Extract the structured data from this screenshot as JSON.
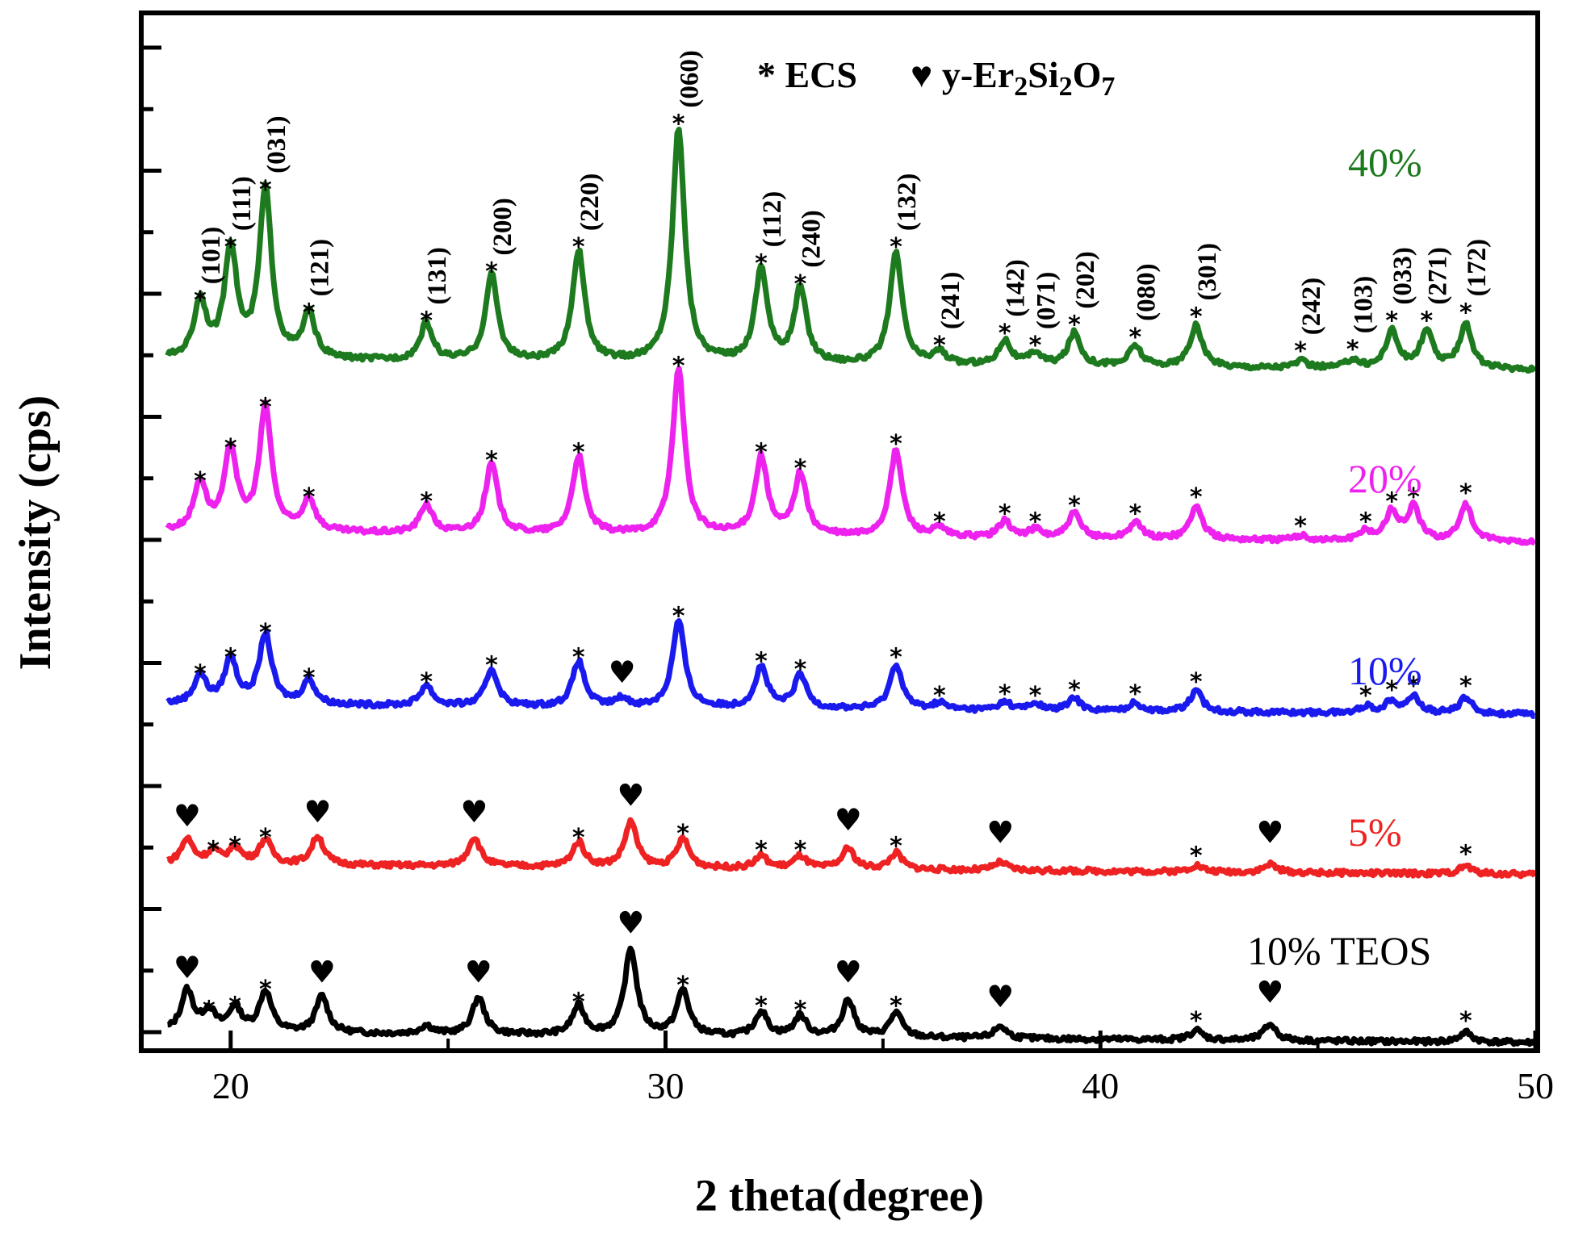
{
  "chart_data": {
    "type": "line",
    "title": "",
    "xlabel": "2 theta(degree)",
    "ylabel": "Intensity (cps)",
    "xlim": [
      18,
      50
    ],
    "xticks": [
      20,
      30,
      40,
      50
    ],
    "ylim": [
      0,
      12
    ],
    "yticks_labeled": false,
    "legend": {
      "ecs_symbol": "*",
      "ecs_label": "ECS",
      "y_symbol": "♥",
      "y_label_prefix": "y-Er",
      "y_sub1": "2",
      "y_mid1": "Si",
      "y_sub2": "2",
      "y_mid2": "O",
      "y_sub3": "7"
    },
    "series": [
      {
        "name": "10% TEOS",
        "color": "#000000",
        "baseline": 0.0,
        "peaks": [
          {
            "x": 19.0,
            "h": 0.5,
            "marker": "heart"
          },
          {
            "x": 19.5,
            "h": 0.25,
            "marker": "star"
          },
          {
            "x": 20.1,
            "h": 0.3,
            "marker": "star"
          },
          {
            "x": 20.8,
            "h": 0.5,
            "marker": "star"
          },
          {
            "x": 22.1,
            "h": 0.45,
            "marker": "heart"
          },
          {
            "x": 24.5,
            "h": 0.1
          },
          {
            "x": 25.7,
            "h": 0.45,
            "marker": "heart"
          },
          {
            "x": 28.0,
            "h": 0.35,
            "marker": "star"
          },
          {
            "x": 29.2,
            "h": 1.05,
            "marker": "heart"
          },
          {
            "x": 30.4,
            "h": 0.55,
            "marker": "star"
          },
          {
            "x": 32.2,
            "h": 0.3,
            "marker": "star"
          },
          {
            "x": 33.1,
            "h": 0.25,
            "marker": "star"
          },
          {
            "x": 34.2,
            "h": 0.45,
            "marker": "heart"
          },
          {
            "x": 35.3,
            "h": 0.3,
            "marker": "star"
          },
          {
            "x": 37.7,
            "h": 0.15,
            "marker": "heart"
          },
          {
            "x": 42.2,
            "h": 0.12,
            "marker": "star"
          },
          {
            "x": 43.9,
            "h": 0.2,
            "marker": "heart"
          },
          {
            "x": 48.4,
            "h": 0.12,
            "marker": "star"
          }
        ]
      },
      {
        "name": "5%",
        "color": "#ee2222",
        "baseline": 2.05,
        "peaks": [
          {
            "x": 19.0,
            "h": 0.3,
            "marker": "heart"
          },
          {
            "x": 19.6,
            "h": 0.15,
            "marker": "star"
          },
          {
            "x": 20.1,
            "h": 0.2,
            "marker": "star"
          },
          {
            "x": 20.8,
            "h": 0.3,
            "marker": "star"
          },
          {
            "x": 22.0,
            "h": 0.35,
            "marker": "heart"
          },
          {
            "x": 25.6,
            "h": 0.35,
            "marker": "heart"
          },
          {
            "x": 28.0,
            "h": 0.3,
            "marker": "star"
          },
          {
            "x": 29.2,
            "h": 0.55,
            "marker": "heart"
          },
          {
            "x": 30.4,
            "h": 0.35,
            "marker": "star"
          },
          {
            "x": 32.2,
            "h": 0.15,
            "marker": "star"
          },
          {
            "x": 33.1,
            "h": 0.15,
            "marker": "star"
          },
          {
            "x": 34.2,
            "h": 0.25,
            "marker": "heart"
          },
          {
            "x": 35.3,
            "h": 0.2,
            "marker": "star"
          },
          {
            "x": 37.7,
            "h": 0.1,
            "marker": "heart"
          },
          {
            "x": 42.2,
            "h": 0.08,
            "marker": "star"
          },
          {
            "x": 43.9,
            "h": 0.1,
            "marker": "heart"
          },
          {
            "x": 48.4,
            "h": 0.1,
            "marker": "star"
          }
        ]
      },
      {
        "name": "10%",
        "color": "#1a1aee",
        "baseline": 4.0,
        "peaks": [
          {
            "x": 19.3,
            "h": 0.35,
            "marker": "star"
          },
          {
            "x": 20.0,
            "h": 0.55,
            "marker": "star"
          },
          {
            "x": 20.8,
            "h": 0.85,
            "marker": "star"
          },
          {
            "x": 21.8,
            "h": 0.3,
            "marker": "star"
          },
          {
            "x": 24.5,
            "h": 0.25,
            "marker": "star"
          },
          {
            "x": 26.0,
            "h": 0.45,
            "marker": "star"
          },
          {
            "x": 28.0,
            "h": 0.55,
            "marker": "star"
          },
          {
            "x": 29.0,
            "h": 0.1,
            "marker": "heart"
          },
          {
            "x": 30.3,
            "h": 1.05,
            "marker": "star"
          },
          {
            "x": 32.2,
            "h": 0.5,
            "marker": "star"
          },
          {
            "x": 33.1,
            "h": 0.4,
            "marker": "star"
          },
          {
            "x": 35.3,
            "h": 0.55,
            "marker": "star"
          },
          {
            "x": 36.3,
            "h": 0.08,
            "marker": "star"
          },
          {
            "x": 37.8,
            "h": 0.1,
            "marker": "star"
          },
          {
            "x": 38.5,
            "h": 0.08,
            "marker": "star"
          },
          {
            "x": 39.4,
            "h": 0.15,
            "marker": "star"
          },
          {
            "x": 40.8,
            "h": 0.1,
            "marker": "star"
          },
          {
            "x": 42.2,
            "h": 0.25,
            "marker": "star"
          },
          {
            "x": 46.1,
            "h": 0.08,
            "marker": "star"
          },
          {
            "x": 46.7,
            "h": 0.15,
            "marker": "star"
          },
          {
            "x": 47.2,
            "h": 0.2,
            "marker": "star"
          },
          {
            "x": 48.4,
            "h": 0.2,
            "marker": "star"
          }
        ]
      },
      {
        "name": "20%",
        "color": "#ee22ee",
        "baseline": 6.1,
        "peaks": [
          {
            "x": 19.3,
            "h": 0.6,
            "marker": "star"
          },
          {
            "x": 20.0,
            "h": 1.0,
            "marker": "star"
          },
          {
            "x": 20.8,
            "h": 1.5,
            "marker": "star"
          },
          {
            "x": 21.8,
            "h": 0.4,
            "marker": "star"
          },
          {
            "x": 24.5,
            "h": 0.35,
            "marker": "star"
          },
          {
            "x": 26.0,
            "h": 0.85,
            "marker": "star"
          },
          {
            "x": 28.0,
            "h": 0.95,
            "marker": "star"
          },
          {
            "x": 30.3,
            "h": 2.0,
            "marker": "star"
          },
          {
            "x": 32.2,
            "h": 0.95,
            "marker": "star"
          },
          {
            "x": 33.1,
            "h": 0.75,
            "marker": "star"
          },
          {
            "x": 35.3,
            "h": 1.05,
            "marker": "star"
          },
          {
            "x": 36.3,
            "h": 0.1,
            "marker": "star"
          },
          {
            "x": 37.8,
            "h": 0.2,
            "marker": "star"
          },
          {
            "x": 38.5,
            "h": 0.1,
            "marker": "star"
          },
          {
            "x": 39.4,
            "h": 0.3,
            "marker": "star"
          },
          {
            "x": 40.8,
            "h": 0.2,
            "marker": "star"
          },
          {
            "x": 42.2,
            "h": 0.4,
            "marker": "star"
          },
          {
            "x": 44.6,
            "h": 0.05,
            "marker": "star"
          },
          {
            "x": 46.1,
            "h": 0.1,
            "marker": "star"
          },
          {
            "x": 46.7,
            "h": 0.35,
            "marker": "star"
          },
          {
            "x": 47.2,
            "h": 0.4,
            "marker": "star"
          },
          {
            "x": 48.4,
            "h": 0.45,
            "marker": "star"
          }
        ]
      },
      {
        "name": "40%",
        "color": "#1e7a1e",
        "baseline": 8.2,
        "peaks": [
          {
            "x": 19.3,
            "h": 0.7,
            "marker": "star",
            "hkl": "(101)"
          },
          {
            "x": 20.0,
            "h": 1.35,
            "marker": "star",
            "hkl": "(111)"
          },
          {
            "x": 20.8,
            "h": 2.05,
            "marker": "star",
            "hkl": "(031)"
          },
          {
            "x": 21.8,
            "h": 0.55,
            "marker": "star",
            "hkl": "(121)"
          },
          {
            "x": 24.5,
            "h": 0.45,
            "marker": "star",
            "hkl": "(131)"
          },
          {
            "x": 26.0,
            "h": 1.05,
            "marker": "star",
            "hkl": "(200)"
          },
          {
            "x": 28.0,
            "h": 1.35,
            "marker": "star",
            "hkl": "(220)"
          },
          {
            "x": 30.3,
            "h": 2.85,
            "marker": "star",
            "hkl": "(060)"
          },
          {
            "x": 32.2,
            "h": 1.15,
            "marker": "star",
            "hkl": "(112)"
          },
          {
            "x": 33.1,
            "h": 0.9,
            "marker": "star",
            "hkl": "(240)"
          },
          {
            "x": 35.3,
            "h": 1.35,
            "marker": "star",
            "hkl": "(132)"
          },
          {
            "x": 36.3,
            "h": 0.15,
            "marker": "star",
            "hkl": "(241)"
          },
          {
            "x": 37.8,
            "h": 0.3,
            "marker": "star",
            "hkl": "(142)"
          },
          {
            "x": 38.5,
            "h": 0.15,
            "marker": "star",
            "hkl": "(071)"
          },
          {
            "x": 39.4,
            "h": 0.4,
            "marker": "star",
            "hkl": "(202)"
          },
          {
            "x": 40.8,
            "h": 0.25,
            "marker": "star",
            "hkl": "(080)"
          },
          {
            "x": 42.2,
            "h": 0.5,
            "marker": "star",
            "hkl": "(301)"
          },
          {
            "x": 44.6,
            "h": 0.08,
            "marker": "star",
            "hkl": "(242)"
          },
          {
            "x": 45.8,
            "h": 0.1,
            "marker": "star",
            "hkl": "(103)"
          },
          {
            "x": 46.7,
            "h": 0.45,
            "marker": "star",
            "hkl": "(033)"
          },
          {
            "x": 47.5,
            "h": 0.45,
            "marker": "star",
            "hkl": "(271)"
          },
          {
            "x": 48.4,
            "h": 0.55,
            "marker": "star",
            "hkl": "(172)"
          }
        ]
      }
    ]
  }
}
